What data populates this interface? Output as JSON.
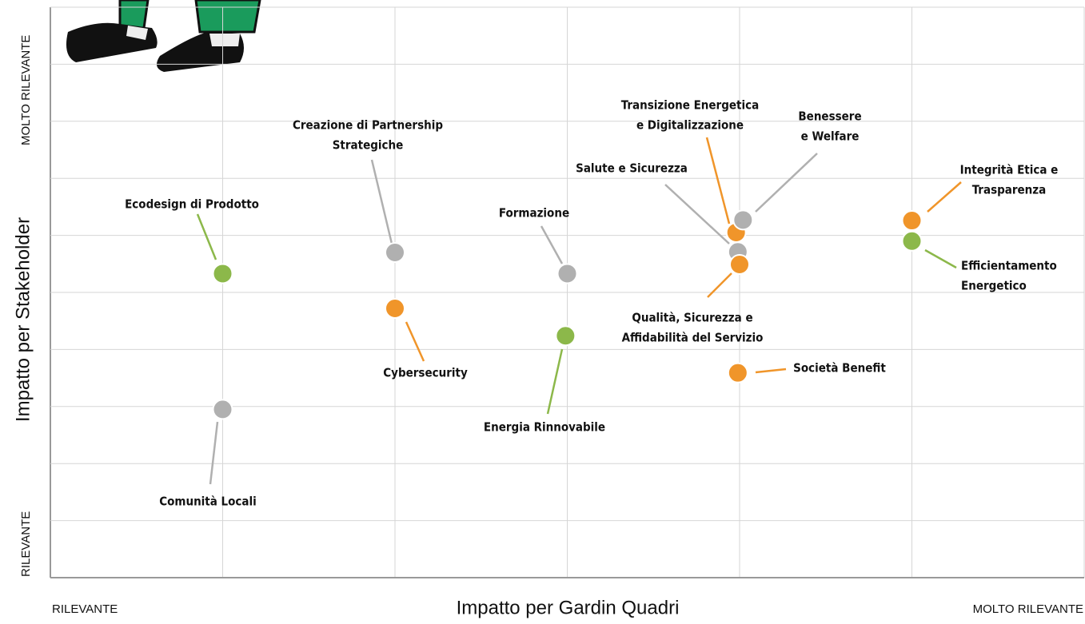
{
  "chart_data": {
    "type": "scatter",
    "x_label": "Impatto per Gardin Quadri",
    "y_label": "Impatto per Stakeholder",
    "x_low_label": "RILEVANTE",
    "x_high_label": "MOLTO RILEVANTE",
    "y_low_label": "RILEVANTE",
    "y_high_label": "MOLTO RILEVANTE",
    "xlim": [
      0,
      6
    ],
    "ylim": [
      0,
      10
    ],
    "xticks": [
      0,
      1,
      2,
      3,
      4,
      5,
      6
    ],
    "yticks": [
      0,
      1,
      2,
      3,
      4,
      5,
      6,
      7,
      8,
      9,
      10
    ],
    "grid": true,
    "points": [
      {
        "label": [
          "Ecodesign di Prodotto"
        ],
        "x": 1.0,
        "y": 5.33,
        "color": "#8cb84a"
      },
      {
        "label": [
          "Comunità Locali"
        ],
        "x": 1.0,
        "y": 2.95,
        "color": "#b0b0b0"
      },
      {
        "label": [
          "Creazione di Partnership",
          "Strategiche"
        ],
        "x": 2.0,
        "y": 5.7,
        "color": "#b0b0b0"
      },
      {
        "label": [
          "Cybersecurity"
        ],
        "x": 2.0,
        "y": 4.72,
        "color": "#f0952a"
      },
      {
        "label": [
          "Formazione"
        ],
        "x": 3.0,
        "y": 5.33,
        "color": "#b0b0b0"
      },
      {
        "label": [
          "Energia Rinnovabile"
        ],
        "x": 2.99,
        "y": 4.24,
        "color": "#8cb84a"
      },
      {
        "label": [
          "Transizione Energetica",
          "e Digitalizzazione"
        ],
        "x": 3.98,
        "y": 6.05,
        "color": "#f0952a"
      },
      {
        "label": [
          "Benessere",
          "e Welfare"
        ],
        "x": 4.02,
        "y": 6.27,
        "color": "#b0b0b0"
      },
      {
        "label": [
          "Salute e Sicurezza"
        ],
        "x": 3.99,
        "y": 5.71,
        "color": "#b0b0b0"
      },
      {
        "label": [
          "Qualità, Sicurezza e",
          "Affidabilità del Servizio"
        ],
        "x": 4.0,
        "y": 5.49,
        "color": "#f0952a"
      },
      {
        "label": [
          "Società Benefit"
        ],
        "x": 3.99,
        "y": 3.59,
        "color": "#f0952a"
      },
      {
        "label": [
          "Integrità Etica e",
          "Trasparenza"
        ],
        "x": 5.0,
        "y": 6.26,
        "color": "#f0952a"
      },
      {
        "label": [
          "Efficientamento",
          "Energetico"
        ],
        "x": 5.0,
        "y": 5.9,
        "color": "#8cb84a"
      }
    ]
  }
}
